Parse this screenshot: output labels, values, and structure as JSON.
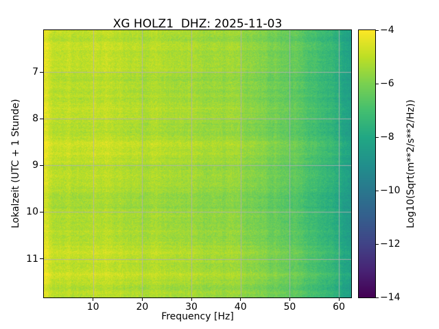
{
  "chart_data": {
    "type": "heatmap",
    "title": "XG HOLZ1  DHZ: 2025-11-03",
    "xlabel": "Frequency [Hz]",
    "ylabel": "Lokalzeit (UTC + 1 Stunde)",
    "xlim": [
      0,
      62.5
    ],
    "ylim_top": 6.1,
    "ylim_bottom": 11.83,
    "x_ticks": [
      10,
      20,
      30,
      40,
      50,
      60
    ],
    "x_tick_labels": [
      "10",
      "20",
      "30",
      "40",
      "50",
      "60"
    ],
    "y_ticks": [
      7,
      8,
      9,
      10,
      11
    ],
    "y_tick_labels": [
      "7",
      "8",
      "9",
      "10",
      "11"
    ],
    "grid": true,
    "grid_color": "#b2b2b2",
    "colormap": "viridis",
    "colorbar": {
      "label": "Log10(Sqrt(m**2/s**2/Hz))",
      "ticks": [
        -4,
        -6,
        -8,
        -10,
        -12,
        -14
      ],
      "tick_labels": [
        "−4",
        "−6",
        "−8",
        "−10",
        "−12",
        "−14"
      ],
      "vmin": -14,
      "vmax": -4,
      "stops": [
        "#440154",
        "#482475",
        "#414487",
        "#355f8d",
        "#2a788e",
        "#21918c",
        "#22a884",
        "#44bf70",
        "#7ad151",
        "#bddf26",
        "#fde725"
      ]
    },
    "spectral_profile": {
      "freq_hz": [
        0,
        0.8,
        2,
        5,
        10,
        20,
        30,
        35,
        40,
        45,
        50,
        54,
        58,
        60,
        62.5
      ],
      "level_log10": [
        -4.2,
        -4.4,
        -4.9,
        -5.0,
        -5.0,
        -5.1,
        -5.2,
        -5.3,
        -5.5,
        -5.9,
        -6.3,
        -6.7,
        -7.3,
        -7.8,
        -8.4
      ]
    },
    "noise_std": 0.35
  }
}
